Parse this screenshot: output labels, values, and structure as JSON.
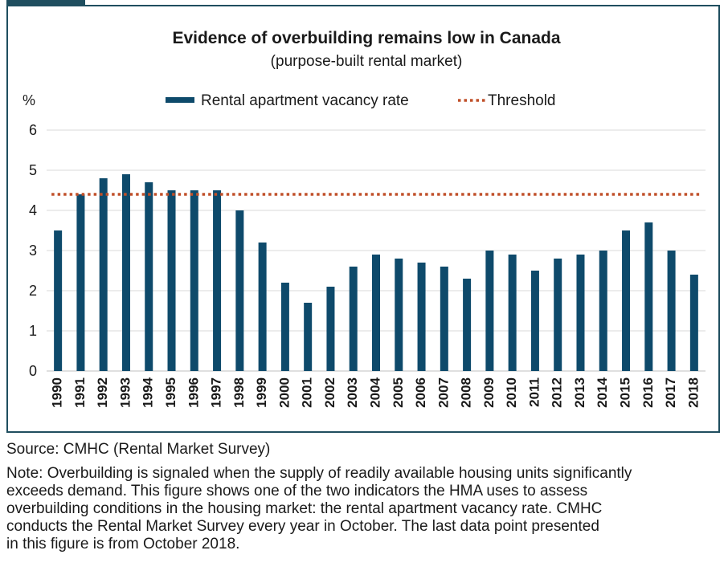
{
  "chart_data": {
    "type": "bar",
    "title": "Evidence of overbuilding remains low in Canada",
    "subtitle": "(purpose-built rental market)",
    "ylabel": "%",
    "xlabel": "",
    "ylim": [
      0,
      6
    ],
    "yticks": [
      "0",
      "1",
      "2",
      "3",
      "4",
      "5",
      "6"
    ],
    "grid": true,
    "legend_position": "top",
    "categories": [
      "1990",
      "1991",
      "1992",
      "1993",
      "1994",
      "1995",
      "1996",
      "1997",
      "1998",
      "1999",
      "2000",
      "2001",
      "2002",
      "2003",
      "2004",
      "2005",
      "2006",
      "2007",
      "2008",
      "2009",
      "2010",
      "2011",
      "2012",
      "2013",
      "2014",
      "2015",
      "2016",
      "2017",
      "2018"
    ],
    "series": [
      {
        "name": "Rental apartment vacancy rate",
        "color": "#0e4a6b",
        "values": [
          3.5,
          4.4,
          4.8,
          4.9,
          4.7,
          4.5,
          4.5,
          4.5,
          4.0,
          3.2,
          2.2,
          1.7,
          2.1,
          2.6,
          2.9,
          2.8,
          2.7,
          2.6,
          2.3,
          3.0,
          2.9,
          2.5,
          2.8,
          2.9,
          3.0,
          3.5,
          3.7,
          3.0,
          2.4
        ]
      },
      {
        "name": "Threshold",
        "color": "#c0502a",
        "style": "dotted",
        "value": 4.4
      }
    ]
  },
  "footer": {
    "source": "Source: CMHC (Rental Market Survey)",
    "note_lines": [
      "Note: Overbuilding is signaled when the supply of readily available housing units significantly",
      "exceeds demand. This figure shows one of the two indicators the HMA uses to assess",
      "overbuilding conditions in the housing market: the rental apartment vacancy rate. CMHC",
      "conducts the Rental Market Survey every year in October. The last data point presented",
      "in this figure is from October 2018."
    ]
  }
}
